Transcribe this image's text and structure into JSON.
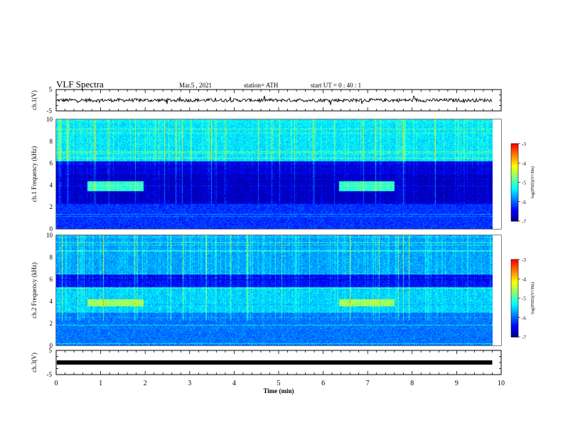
{
  "header": {
    "title": "VLF Spectra",
    "date": "Mar.5 , 2021",
    "station": "station= ATH",
    "start_ut": "start UT = 0 : 40 : 1"
  },
  "chart_data": [
    {
      "type": "line",
      "panel": "ch1-waveform",
      "ylabel": "ch.1(V)",
      "ylim": [
        -5,
        5
      ],
      "yticks": [
        "5",
        "-5"
      ],
      "xlim": [
        0,
        10
      ],
      "x": [
        0,
        1,
        2,
        3,
        4,
        5,
        6,
        7,
        8,
        9,
        9.8
      ],
      "y": [
        0,
        0,
        0,
        0,
        0,
        0,
        0,
        0,
        0,
        0,
        0
      ]
    },
    {
      "type": "heatmap",
      "panel": "ch1-spectrogram",
      "ylabel": "ch.1 Frequency (kHz)",
      "ylim": [
        0,
        10
      ],
      "yticks": [
        "0",
        "2",
        "4",
        "6",
        "8",
        "10"
      ],
      "xlim": [
        0,
        10
      ],
      "data_end_min": 9.8,
      "bands": [
        {
          "f": [
            6.2,
            10
          ],
          "logpsd": -5.4
        },
        {
          "f": [
            5.0,
            6.2
          ],
          "logpsd": -6.6
        },
        {
          "f": [
            2.3,
            5.0
          ],
          "logpsd": -6.7
        },
        {
          "f": [
            0,
            2.3
          ],
          "logpsd": -6.2
        }
      ],
      "events": [
        {
          "t": [
            0.7,
            1.95
          ],
          "f": [
            3.5,
            4.4
          ],
          "logpsd": -5.1
        },
        {
          "t": [
            6.35,
            7.6
          ],
          "f": [
            3.5,
            4.4
          ],
          "logpsd": -5.1
        }
      ],
      "colorbar": {
        "min": -7,
        "max": -3,
        "ticks": [
          "-3",
          "-4",
          "-5",
          "-6",
          "-7"
        ],
        "label": "log(PSD)(V²/Hz)"
      }
    },
    {
      "type": "heatmap",
      "panel": "ch2-spectrogram",
      "ylabel": "ch.2 Frequency (kHz)",
      "ylim": [
        0,
        10
      ],
      "yticks": [
        "0",
        "2",
        "4",
        "6",
        "8",
        "10"
      ],
      "xlim": [
        0,
        10
      ],
      "data_end_min": 9.8,
      "bands": [
        {
          "f": [
            6.5,
            10
          ],
          "logpsd": -5.7
        },
        {
          "f": [
            5.3,
            6.5
          ],
          "logpsd": -6.4
        },
        {
          "f": [
            3.0,
            5.3
          ],
          "logpsd": -5.5
        },
        {
          "f": [
            0,
            3.0
          ],
          "logpsd": -5.9
        }
      ],
      "events": [
        {
          "t": [
            0.7,
            1.95
          ],
          "f": [
            3.6,
            4.2
          ],
          "logpsd": -4.6
        },
        {
          "t": [
            6.35,
            7.6
          ],
          "f": [
            3.6,
            4.2
          ],
          "logpsd": -4.6
        }
      ],
      "colorbar": {
        "min": -7,
        "max": -3,
        "ticks": [
          "-3",
          "-4",
          "-5",
          "-6",
          "-7"
        ],
        "label": "log(PSD)(V²/Hz)"
      }
    },
    {
      "type": "line",
      "panel": "ch3-waveform",
      "ylabel": "ch.3(V)",
      "ylim": [
        -5,
        5
      ],
      "yticks": [
        "5",
        "-5"
      ],
      "xlim": [
        0,
        10
      ],
      "x": [
        0,
        9.8
      ],
      "y": [
        0,
        0
      ]
    }
  ],
  "xaxis": {
    "label": "Time (min)",
    "ticks": [
      "0",
      "1",
      "2",
      "3",
      "4",
      "5",
      "6",
      "7",
      "8",
      "9",
      "10"
    ]
  },
  "colors": {
    "colormap": [
      "#00007f",
      "#0000ff",
      "#007fff",
      "#00ffff",
      "#7fff7f",
      "#ffff00",
      "#ff7f00",
      "#ff0000",
      "#ffffff"
    ]
  }
}
